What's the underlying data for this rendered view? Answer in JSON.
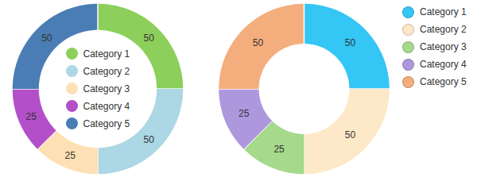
{
  "chart_data": [
    {
      "type": "donut",
      "categories": [
        "Category 1",
        "Category 2",
        "Category 3",
        "Category 4",
        "Category 5"
      ],
      "values": [
        50,
        50,
        25,
        25,
        50
      ],
      "colors": [
        "#8ccf5a",
        "#acd7e5",
        "#fde0b4",
        "#b24fc9",
        "#4a7db3"
      ],
      "legend": "center",
      "data_labels": true
    },
    {
      "type": "donut",
      "categories": [
        "Category 1",
        "Category 2",
        "Category 3",
        "Category 4",
        "Category 5"
      ],
      "values": [
        50,
        50,
        25,
        25,
        50
      ],
      "colors": [
        "#34c6f4",
        "#fde8c8",
        "#a5d98b",
        "#ad98de",
        "#f4ae7d"
      ],
      "legend": "right",
      "data_labels": true
    }
  ]
}
